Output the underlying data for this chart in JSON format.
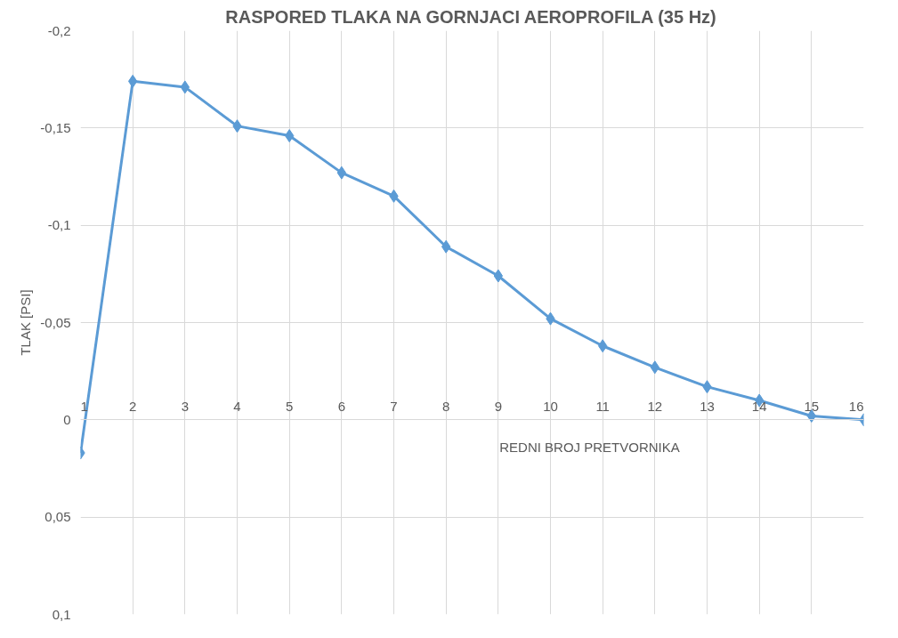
{
  "chart_data": {
    "type": "line",
    "title": "RASPORED TLAKA NA GORNJACI AEROPROFILA (35 Hz)",
    "xlabel": "REDNI BROJ PRETVORNIKA",
    "ylabel": "TLAK [PSI]",
    "x": [
      1,
      2,
      3,
      4,
      5,
      6,
      7,
      8,
      9,
      10,
      11,
      12,
      13,
      14,
      15,
      16
    ],
    "series": [
      {
        "color": "#5b9bd5",
        "values": [
          0.017,
          -0.174,
          -0.171,
          -0.151,
          -0.146,
          -0.127,
          -0.115,
          -0.089,
          -0.074,
          -0.052,
          -0.038,
          -0.027,
          -0.017,
          -0.01,
          -0.002,
          0
        ]
      }
    ],
    "xlim": [
      1,
      16
    ],
    "xticks": [
      1,
      2,
      3,
      4,
      5,
      6,
      7,
      8,
      9,
      10,
      11,
      12,
      13,
      14,
      15,
      16
    ],
    "ylim": [
      0.1,
      -0.2
    ],
    "yticks": [
      {
        "value": -0.2,
        "label": "-0,2"
      },
      {
        "value": -0.15,
        "label": "-0,15"
      },
      {
        "value": -0.1,
        "label": "-0,1"
      },
      {
        "value": -0.05,
        "label": "-0,05"
      },
      {
        "value": 0,
        "label": "0"
      },
      {
        "value": 0.05,
        "label": "0,05"
      },
      {
        "value": 0.1,
        "label": "0,1"
      }
    ],
    "grid": true,
    "marker": "diamond",
    "line_style": "solid",
    "legend": false
  }
}
